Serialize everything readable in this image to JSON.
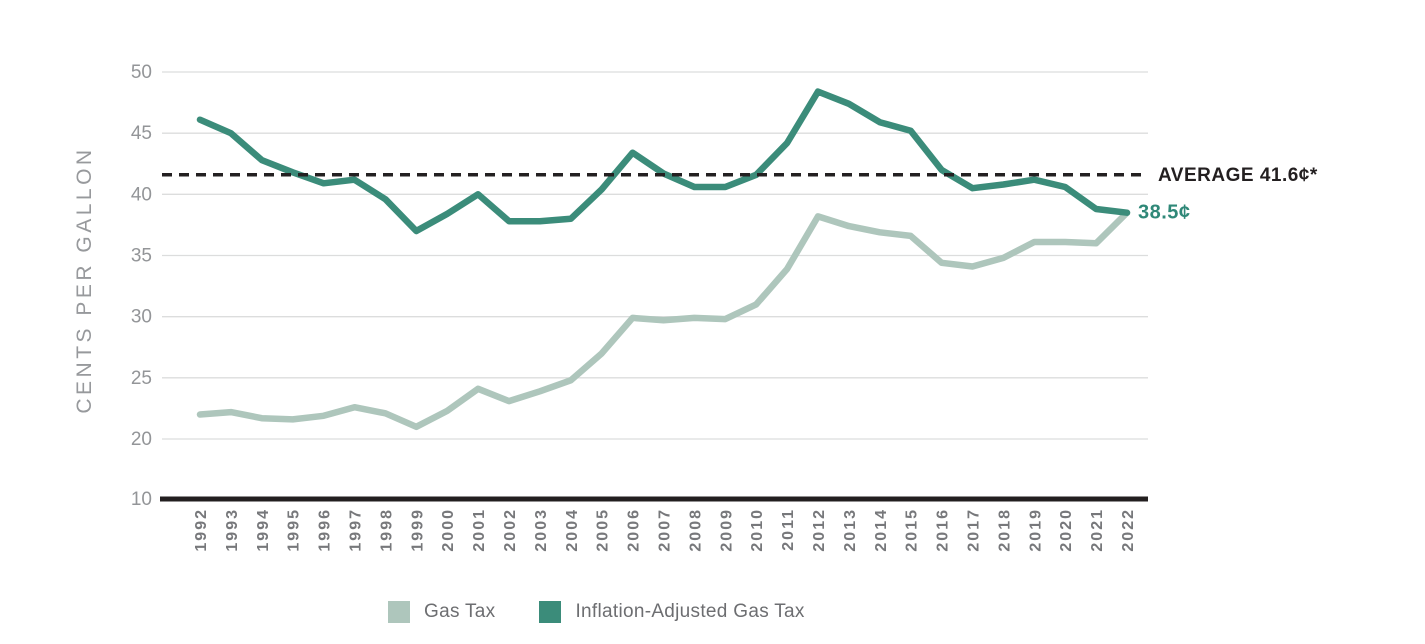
{
  "chart_data": {
    "type": "line",
    "title": "",
    "xlabel": "",
    "ylabel": "CENTS PER GALLON",
    "x": [
      "1992",
      "1993",
      "1994",
      "1995",
      "1996",
      "1997",
      "1998",
      "1999",
      "2000",
      "2001",
      "2002",
      "2003",
      "2004",
      "2005",
      "2006",
      "2007",
      "2008",
      "2009",
      "2010",
      "2011",
      "2012",
      "2013",
      "2014",
      "2015",
      "2016",
      "2017",
      "2018",
      "2019",
      "2020",
      "2021",
      "2022"
    ],
    "series": [
      {
        "name": "Gas Tax",
        "color": "#aec6bc",
        "values": [
          22.0,
          22.2,
          21.7,
          21.6,
          21.9,
          22.6,
          22.1,
          21.0,
          22.3,
          24.1,
          23.1,
          23.9,
          24.8,
          27.0,
          29.9,
          29.7,
          29.9,
          29.8,
          31.0,
          33.9,
          38.2,
          37.4,
          36.9,
          36.6,
          34.4,
          34.1,
          34.8,
          36.1,
          36.1,
          36.0,
          38.5
        ]
      },
      {
        "name": "Inflation-Adjusted Gas Tax",
        "color": "#3b8c7a",
        "values": [
          46.1,
          45.0,
          42.8,
          41.8,
          40.9,
          41.2,
          39.6,
          37.0,
          38.4,
          40.0,
          37.8,
          37.8,
          38.0,
          40.4,
          43.4,
          41.7,
          40.6,
          40.6,
          41.6,
          44.2,
          48.4,
          47.4,
          45.9,
          45.2,
          42.0,
          40.5,
          40.8,
          41.2,
          40.6,
          38.8,
          38.5
        ]
      }
    ],
    "yticks": [
      50,
      45,
      40,
      35,
      30,
      25,
      20,
      10
    ],
    "ylim": [
      10,
      50
    ],
    "grid": true,
    "legend_position": "bottom",
    "average_line": {
      "value": 41.6,
      "label": "AVERAGE 41.6¢*",
      "style": "dashed",
      "color": "#232021"
    },
    "end_label": {
      "text": "38.5¢",
      "value": 38.5,
      "color": "#2f8878"
    },
    "colors": {
      "gridline": "#dcdddd",
      "axis": "#231f20",
      "tick_text": "#939598",
      "year_text": "#77787b"
    }
  },
  "axis": {
    "y_title": "CENTS PER GALLON"
  },
  "annotations": {
    "average_label": "AVERAGE 41.6¢*",
    "end_value_label": "38.5¢"
  },
  "legend": {
    "items": [
      {
        "label": "Gas Tax",
        "color": "#aec6bc"
      },
      {
        "label": "Inflation-Adjusted Gas Tax",
        "color": "#3b8c7a"
      }
    ]
  }
}
